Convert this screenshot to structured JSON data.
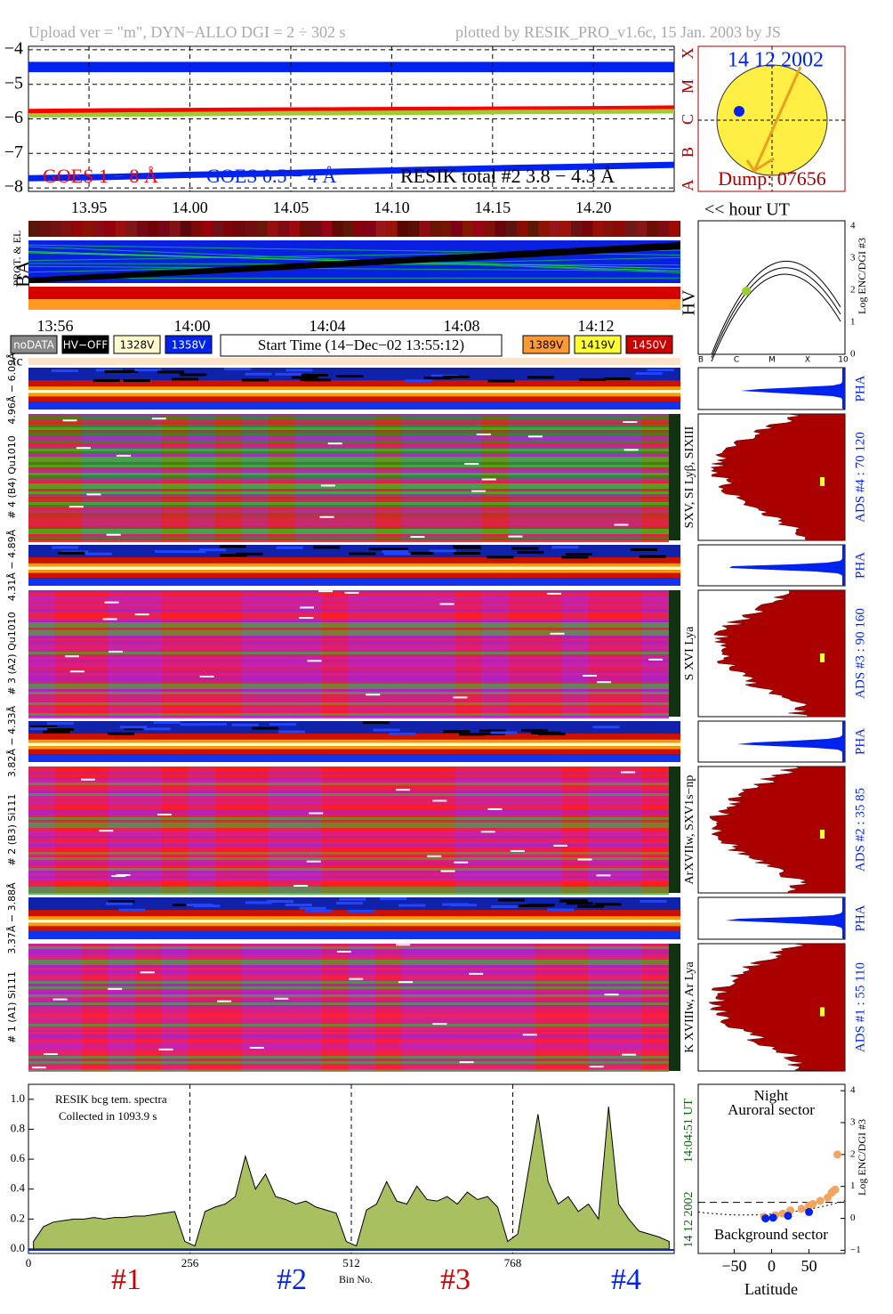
{
  "header": {
    "upload": "Upload ver = \"m\", DYN−ALLO DGI =   2 ÷ 302 s",
    "plotted": "plotted by RESIK_PRO_v1.6c, 15 Jan. 2003 by JS"
  },
  "chart_data": [
    {
      "type": "line",
      "x": [
        13.92,
        13.96,
        14.0,
        14.04,
        14.08,
        14.12,
        14.16,
        14.2,
        14.24
      ],
      "series": [
        {
          "name": "GOES 1 − 8 Å",
          "color": "#ff0000",
          "values": [
            -5.8,
            -5.78,
            -5.77,
            -5.76,
            -5.75,
            -5.74,
            -5.73,
            -5.72,
            -5.7
          ]
        },
        {
          "name": "GOES 0.5 − 4 Å",
          "color": "#0022ee",
          "values": [
            -7.72,
            -7.68,
            -7.62,
            -7.58,
            -7.52,
            -7.47,
            -7.42,
            -7.38,
            -7.33
          ]
        },
        {
          "name": "RESIK total #2  3.8 − 4.3 Å",
          "color": "#9acd32",
          "values": [
            -5.9,
            -5.88,
            -5.86,
            -5.84,
            -5.83,
            -5.82,
            -5.8,
            -5.79,
            -5.78
          ]
        }
      ],
      "xlim": [
        13.92,
        14.24
      ],
      "xticks": [
        13.95,
        {
          "value": 14,
          "label": "14.00"
        },
        14.05,
        {
          "value": 14.1,
          "label": "14.10"
        },
        14.15,
        {
          "value": 14.2,
          "label": "14.20"
        }
      ],
      "ylim": [
        -8.1,
        -3.9
      ],
      "yticks": [
        {
          "value": -8,
          "label": "−8"
        },
        {
          "value": -7,
          "label": "−7"
        },
        {
          "value": -6,
          "label": "−6"
        },
        {
          "value": -5,
          "label": "−5"
        },
        {
          "value": -4,
          "label": "−4"
        }
      ],
      "grid": true,
      "classes": [
        "X",
        "M",
        "C",
        "B",
        "A"
      ],
      "x_label": "<< hour UT"
    },
    {
      "type": "area",
      "title": "RESIK bcg tem. spectra",
      "subtitle": "Collected in  1093.9 s",
      "x_label": "Bin No.",
      "time": "14:04:51 UT",
      "date": "14 12 2002",
      "detectors": [
        "#1",
        "#2",
        "#3",
        "#4"
      ],
      "color": "#a8c060",
      "x": [
        8,
        24,
        40,
        56,
        72,
        88,
        104,
        120,
        136,
        152,
        168,
        184,
        200,
        216,
        232,
        248,
        264,
        280,
        296,
        312,
        328,
        344,
        360,
        376,
        392,
        408,
        424,
        440,
        456,
        472,
        488,
        504,
        520,
        536,
        552,
        568,
        584,
        600,
        616,
        632,
        648,
        664,
        680,
        696,
        712,
        728,
        744,
        760,
        776,
        792,
        808,
        824,
        840,
        856,
        872,
        888,
        904,
        920,
        936,
        952,
        968,
        984,
        1000,
        1016
      ],
      "values": [
        0.05,
        0.15,
        0.18,
        0.19,
        0.2,
        0.2,
        0.21,
        0.2,
        0.21,
        0.21,
        0.22,
        0.22,
        0.23,
        0.24,
        0.25,
        0.05,
        0.02,
        0.25,
        0.28,
        0.3,
        0.35,
        0.62,
        0.4,
        0.5,
        0.35,
        0.33,
        0.3,
        0.32,
        0.28,
        0.26,
        0.24,
        0.05,
        0.02,
        0.26,
        0.3,
        0.45,
        0.32,
        0.3,
        0.42,
        0.33,
        0.32,
        0.35,
        0.3,
        0.38,
        0.33,
        0.35,
        0.28,
        0.05,
        0.1,
        0.5,
        0.9,
        0.45,
        0.3,
        0.35,
        0.25,
        0.3,
        0.2,
        0.95,
        0.3,
        0.2,
        0.12,
        0.1,
        0.08,
        0.05
      ],
      "xlim": [
        0,
        1024
      ],
      "xticks": [
        0,
        256,
        512,
        768
      ],
      "ylim": [
        -0.03,
        1.1
      ],
      "yticks": [
        {
          "value": 0,
          "label": "0.0"
        },
        0.2,
        0.4,
        0.6,
        0.8,
        {
          "value": 1,
          "label": "1.0"
        }
      ]
    },
    {
      "type": "scatter",
      "title": "Night",
      "subtitle": "Auroral sector",
      "note": "Background sector",
      "x_label": "Latitude",
      "y_label": "Log ENC/DGI #3",
      "series": [
        {
          "color": "#f4a460",
          "x": [
            -10,
            5,
            15,
            25,
            40,
            50,
            55,
            65,
            75,
            80,
            82,
            85,
            88
          ],
          "values": [
            0.05,
            0.1,
            0.15,
            0.25,
            0.3,
            0.4,
            0.45,
            0.55,
            0.65,
            0.8,
            0.85,
            0.9,
            2.0
          ]
        },
        {
          "color": "#0022ee",
          "x": [
            -8,
            2,
            22,
            50
          ],
          "values": [
            0,
            0.02,
            0.08,
            0.2
          ]
        }
      ],
      "xlim": [
        -98,
        98
      ],
      "xticks": [
        {
          "value": -50,
          "label": "−50"
        },
        0,
        50
      ],
      "ylim": [
        -1.1,
        4.2
      ],
      "yticks": [
        {
          "value": -1,
          "label": "−1"
        },
        0,
        1,
        2,
        3,
        4
      ]
    }
  ],
  "sun": {
    "date": "14 12 2002",
    "dump": "Dump: 07656"
  },
  "ba_panel": {
    "label": "BA",
    "side": "PROT. & EL",
    "times": [
      "13:56",
      "14:00",
      "14:04",
      "14:08",
      "14:12"
    ]
  },
  "hv_legend": {
    "left": [
      "noDATA",
      "HV−OFF",
      "1328V",
      "1358V"
    ],
    "start": "Start Time (14−Dec−02 13:55:12)",
    "right": [
      "1389V",
      "1419V",
      "1450V"
    ]
  },
  "hv_panel": {
    "label": "HV",
    "axis": "Log ENC/DGI #3",
    "yticks": [
      "0",
      "1",
      "2",
      "3",
      "4"
    ],
    "xticks": [
      "B",
      "C",
      "M",
      "X",
      "10"
    ]
  },
  "tc": "tc",
  "pha": "PHA",
  "channels": [
    {
      "range": "4.96Å − 6.09Å",
      "name": "# 4 (B4) Qu1010",
      "lines": "SXV, SI Lyβ, SIXIII",
      "ads": "ADS #4 :   70 120"
    },
    {
      "range": "4.31Å − 4.89Å",
      "name": "# 3 (A2) Qu1010",
      "lines": "S XVI Lya",
      "ads": "ADS #3 :   90 160"
    },
    {
      "range": "3.82Å − 4.33Å",
      "name": "# 2 (B3) Si111",
      "lines": "ArXVIIw, SXV1s−np",
      "ads": "ADS #2 :   35  85"
    },
    {
      "range": "3.37Å − 3.88Å",
      "name": "# 1 (A1) Si111",
      "lines": "K XVIIIw, Ar Lya",
      "ads": "ADS #1 :   55 110"
    }
  ]
}
